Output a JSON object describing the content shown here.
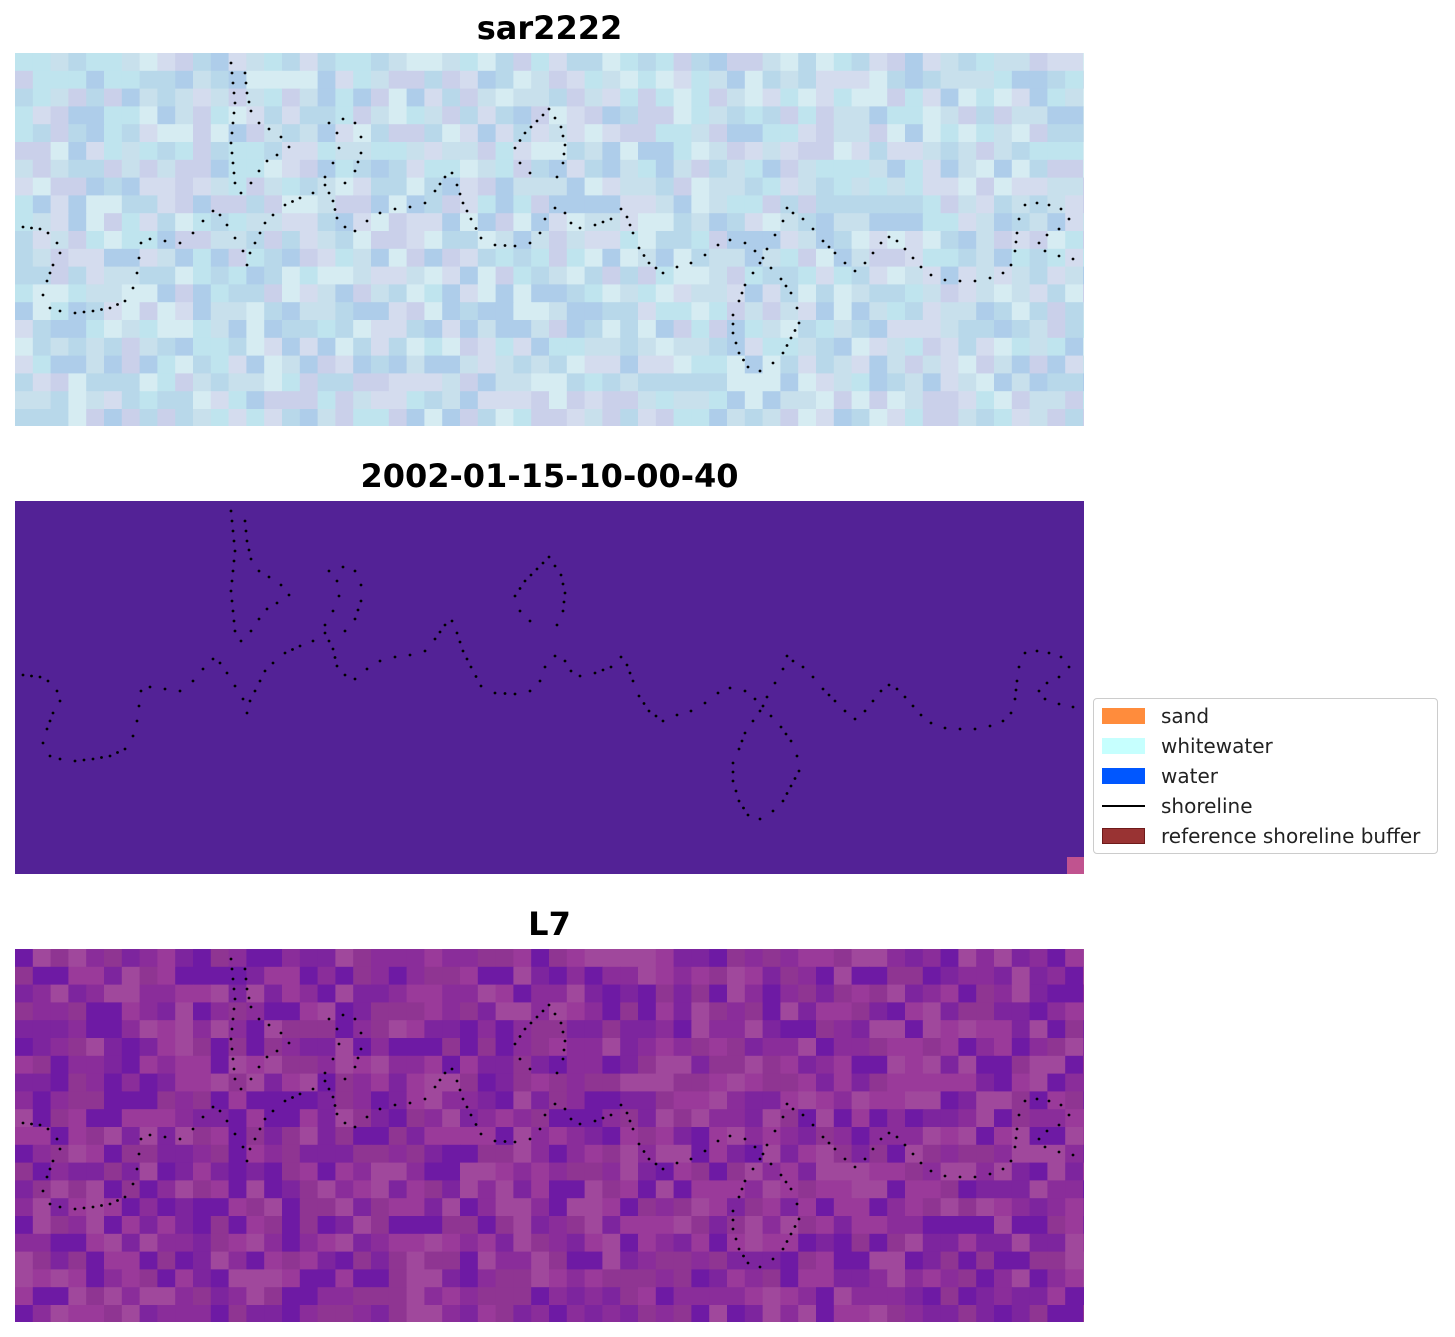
{
  "panels": [
    {
      "title": "sar2222",
      "kind": "image-rgb"
    },
    {
      "title": "2002-01-15-10-00-40",
      "kind": "classification"
    },
    {
      "title": "L7",
      "kind": "image-index"
    }
  ],
  "legend": {
    "items": [
      {
        "label": "sand",
        "color": "#ff8c3c",
        "type": "patch"
      },
      {
        "label": "whitewater",
        "color": "#c6fffe",
        "type": "patch"
      },
      {
        "label": "water",
        "color": "#0057ff",
        "type": "patch"
      },
      {
        "label": "shoreline",
        "color": "#000000",
        "type": "line"
      },
      {
        "label": "reference shoreline buffer",
        "color": "#993333",
        "type": "patch"
      }
    ]
  },
  "colors": {
    "classification_background": "#532296",
    "classification_corner": "#c0538f",
    "sar_palette": [
      "#c8e0ec",
      "#b8d8ea",
      "#cad0ea",
      "#bfe4ee",
      "#d4dcee",
      "#aecdea",
      "#d6ecf2"
    ],
    "index_palette": [
      "#8a2d9a",
      "#7d259e",
      "#9a3a9a",
      "#a0489c",
      "#6e1aa4",
      "#8f3592"
    ]
  }
}
